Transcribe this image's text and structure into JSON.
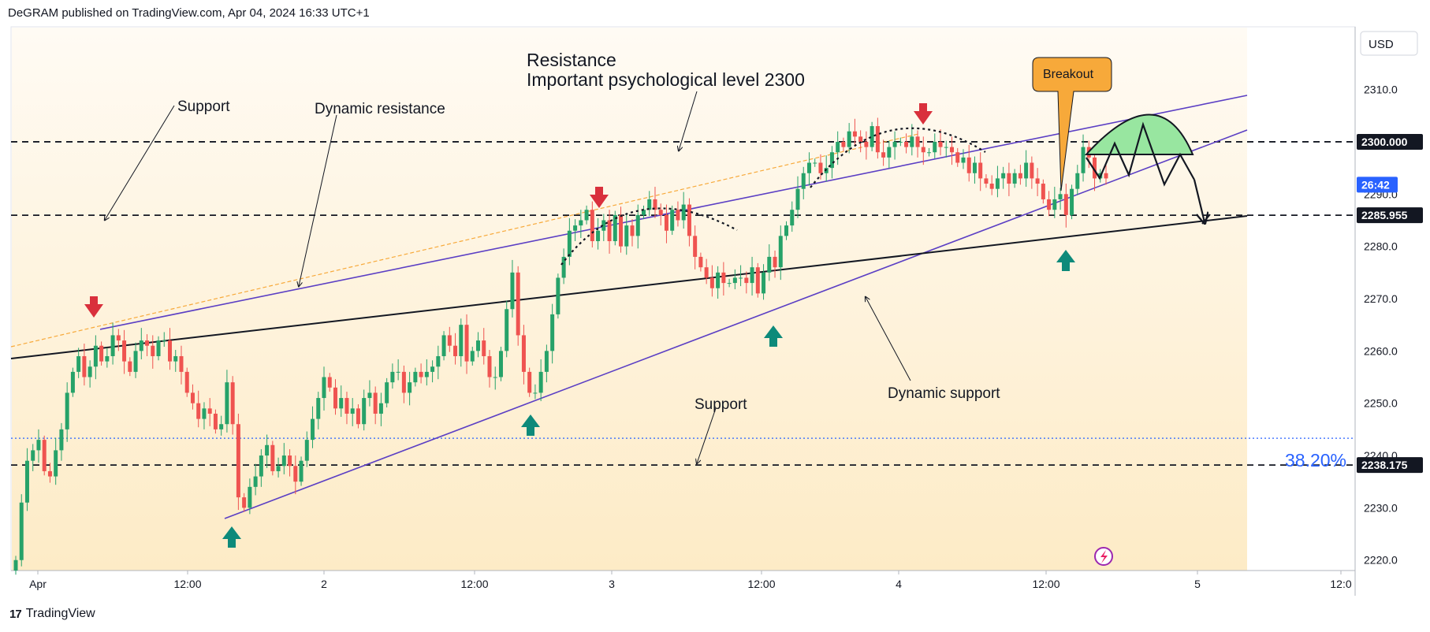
{
  "header": {
    "publish_line": "DeGRAM published on TradingView.com, Apr 04, 2024 16:33 UTC+1"
  },
  "footer": {
    "brand": "TradingView"
  },
  "colors": {
    "up": "#26a269",
    "down": "#ef5350",
    "channel": "#5b3fc4",
    "fib": "#2962ff",
    "breakout": "#f7a93a",
    "arrow_up": "#0d8a7a",
    "arrow_down": "#d9303c",
    "zone": "#98e6a0"
  },
  "chart_data": {
    "type": "candlestick",
    "currency": "USD",
    "ylim": [
      2218,
      2322
    ],
    "y_ticks": [
      2220,
      2230,
      2240,
      2250,
      2260,
      2270,
      2280,
      2290,
      2310
    ],
    "x_ticks": [
      "Apr",
      "12:00",
      "2",
      "12:00",
      "3",
      "12:00",
      "4",
      "12:00",
      "5",
      "12:0"
    ],
    "price_labels": [
      {
        "value": 2300.0,
        "label": "2300.000",
        "style": "black"
      },
      {
        "value": 2291.8,
        "label": "26:42",
        "style": "blue"
      },
      {
        "value": 2285.955,
        "label": "2285.955",
        "style": "black"
      },
      {
        "value": 2238.175,
        "label": "2238.175",
        "style": "black"
      }
    ],
    "horizontal_levels": [
      2300.0,
      2285.955,
      2238.175
    ],
    "fib_level": {
      "value": 2243.3,
      "label": "38.20%"
    },
    "annotations": {
      "resistance_title": "Resistance",
      "resistance_sub": "Important psychological level 2300",
      "support_top": "Support",
      "dynamic_resistance": "Dynamic resistance",
      "support_bottom": "Support",
      "dynamic_support": "Dynamic support",
      "breakout": "Breakout"
    },
    "candles_close": [
      2220,
      2231,
      2239,
      2241,
      2243,
      2237,
      2236,
      2241,
      2245,
      2252,
      2256,
      2259,
      2255,
      2257,
      2261,
      2258,
      2259,
      2263,
      2262,
      2258,
      2256,
      2260,
      2262,
      2261,
      2259,
      2262,
      2262,
      2258,
      2259,
      2256,
      2252,
      2250,
      2247,
      2249,
      2248,
      2245,
      2246,
      2254,
      2246,
      2232,
      2230,
      2234,
      2236,
      2240,
      2242,
      2237,
      2238,
      2240,
      2238,
      2235,
      2239,
      2243,
      2247,
      2251,
      2255,
      2253,
      2249,
      2251,
      2248,
      2249,
      2246,
      2251,
      2252,
      2248,
      2250,
      2254,
      2256,
      2256,
      2252,
      2254,
      2256,
      2255,
      2256,
      2257,
      2259,
      2263,
      2261,
      2259,
      2265,
      2258,
      2260,
      2262,
      2259,
      2255,
      2255,
      2260,
      2268,
      2275,
      2263,
      2256,
      2252,
      2252,
      2256,
      2260,
      2267,
      2274,
      2278,
      2283,
      2284,
      2285,
      2287,
      2281,
      2283,
      2285,
      2281,
      2286,
      2280,
      2284,
      2282,
      2286,
      2287,
      2289,
      2287,
      2286,
      2283,
      2287,
      2285,
      2288,
      2282,
      2278,
      2276,
      2274,
      2272,
      2275,
      2273,
      2273,
      2274,
      2274,
      2273,
      2276,
      2271,
      2275,
      2278,
      2276,
      2282,
      2284,
      2287,
      2291,
      2294,
      2296,
      2296,
      2294,
      2295,
      2298,
      2300,
      2299,
      2302,
      2301,
      2300,
      2299,
      2303,
      2298,
      2297,
      2299,
      2300,
      2300,
      2299,
      2301,
      2299,
      2298,
      2298,
      2300,
      2299,
      2299,
      2298,
      2296,
      2297,
      2294,
      2296,
      2293,
      2292,
      2291,
      2293,
      2294,
      2292,
      2294,
      2293,
      2296,
      2293,
      2292,
      2289,
      2287,
      2289,
      2290,
      2286,
      2291,
      2294,
      2299,
      2297,
      2293,
      2294,
      2293
    ],
    "candle_times": "30-minute bars from Apr 1 23:00 to Apr 4 16:30"
  }
}
